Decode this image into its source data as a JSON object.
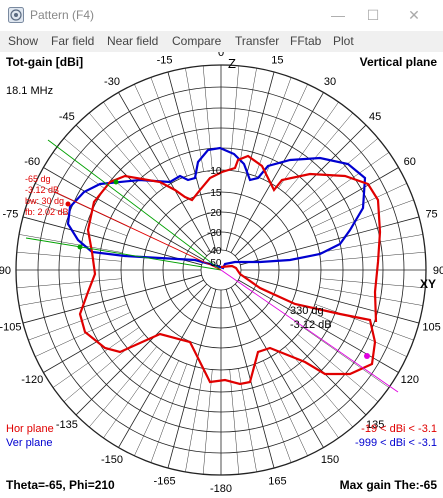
{
  "window": {
    "title": "Pattern    (F4)",
    "min_icon": "minimize-icon",
    "max_icon": "maximize-icon",
    "close_icon": "close-icon"
  },
  "menu": [
    "Show",
    "Far field",
    "Near field",
    "Compare",
    "Transfer",
    "FFtab",
    "Plot"
  ],
  "plot": {
    "top_left_label": "Tot-gain [dBi]",
    "top_right_label": "Vertical plane",
    "frequency": "18.1 MHz",
    "top_axis_label": "Z",
    "right_axis_label": "XY",
    "angle_labels": {
      "0": "0",
      "15": "-15",
      "30": "-30",
      "45": "-45",
      "60": "-60",
      "75": "-75",
      "90": "-90",
      "105": "-105",
      "120": "-120",
      "135": "-135",
      "150": "-150",
      "165": "-165",
      "180": "-180",
      "-15": "15",
      "-30": "30",
      "-45": "45",
      "-60": "60",
      "-75": "75",
      "-90": "90",
      "-105": "105",
      "-120": "120",
      "-135": "135",
      "-150": "150",
      "-165": "165"
    },
    "ring_labels": [
      "-10",
      "-15",
      "-20",
      "-30",
      "-40",
      "-50"
    ],
    "left_annotation": [
      "-65 dg",
      "-3.12 dB",
      "bw: 30 dg",
      "fb: 2.02 dB"
    ],
    "marker_annotation": [
      "330 dg",
      "-3.12 dB"
    ],
    "legend_hor": "Hor plane",
    "legend_ver": "Ver plane",
    "range_hor": "-19 < dBi < -3.1",
    "range_ver": "-999 < dBi < -3.1",
    "footer_left": "Theta=-65, Phi=210",
    "footer_right": "Max gain The:-65",
    "colors": {
      "hor": "#e00000",
      "ver": "#0000d0",
      "beam": "#00a000",
      "marker": "#e000e0",
      "grid": "#222222"
    }
  }
}
